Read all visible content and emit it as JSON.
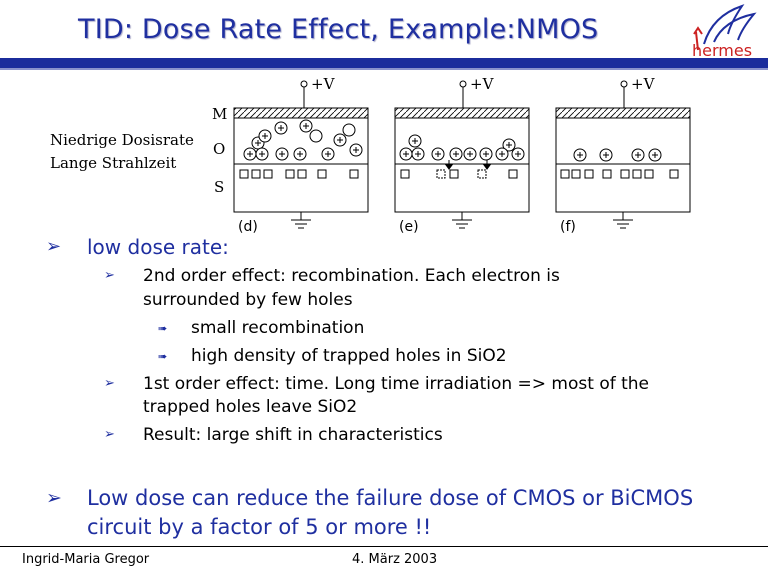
{
  "slide": {
    "title": "TID: Dose Rate Effect, Example:NMOS",
    "logo_text": "hermes"
  },
  "figure": {
    "supply_label": "+V",
    "layer_labels": [
      "M",
      "O",
      "S"
    ],
    "caption_line1": "Niedrige Dosisrate",
    "caption_line2": "Lange Strahlzeit",
    "panel_labels": [
      "(d)",
      "(e)",
      "(f)"
    ]
  },
  "bullets": {
    "heading": "low dose rate:",
    "item1_line1": "2nd order effect: recombination. Each electron is",
    "item1_line2": "surrounded by few holes",
    "sub1": "small recombination",
    "sub2": "high density of trapped holes in SiO2",
    "item2_line1": "1st order effect: time. Long time irradiation => most of the",
    "item2_line2": "trapped holes leave SiO2",
    "item3": "Result: large shift in characteristics",
    "conclusion": "Low dose can reduce the failure dose of CMOS or BiCMOS circuit by a factor of 5 or more !!"
  },
  "footer": {
    "author": "Ingrid-Maria Gregor",
    "date": "4. März 2003"
  },
  "colors": {
    "accent": "#1f2fa0",
    "rule": "#1b2c9c"
  }
}
